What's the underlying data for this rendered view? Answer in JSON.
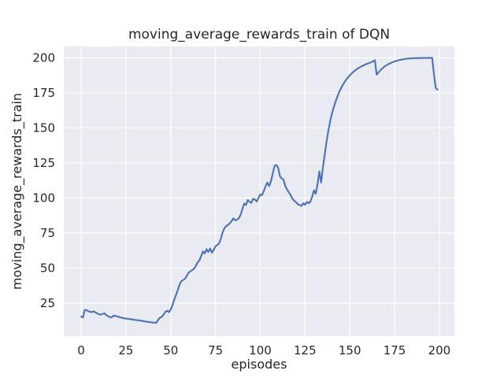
{
  "figure": {
    "background_color": "#ffffff"
  },
  "chart_data": {
    "type": "line",
    "title": "moving_average_rewards_train of DQN",
    "xlabel": "episodes",
    "ylabel": "moving_average_rewards_train",
    "legend": null,
    "grid": true,
    "x_ticks": [
      0,
      25,
      50,
      75,
      100,
      125,
      150,
      175,
      200
    ],
    "y_ticks": [
      25,
      50,
      75,
      100,
      125,
      150,
      175,
      200
    ],
    "xlim": [
      -9.7,
      208.4
    ],
    "ylim": [
      1.4,
      208.1
    ],
    "style": {
      "line_color": "#4C72B0",
      "plot_background": "#EAEAF2",
      "grid_color": "#FFFFFF",
      "text_color": "#262626"
    },
    "series": [
      {
        "name": "moving_average_rewards_train",
        "x_start": 0,
        "x_step": 1,
        "y": [
          15.5,
          14.8,
          20.2,
          20.0,
          19.3,
          18.9,
          18.6,
          19.2,
          18.4,
          17.7,
          17.1,
          16.8,
          17.3,
          17.8,
          16.5,
          15.8,
          15.1,
          14.8,
          16.1,
          15.9,
          15.6,
          15.2,
          14.8,
          14.5,
          14.2,
          14.0,
          13.9,
          13.7,
          13.5,
          13.3,
          13.1,
          12.9,
          12.8,
          12.6,
          12.4,
          12.1,
          11.9,
          11.7,
          11.5,
          11.4,
          11.2,
          11.1,
          11.0,
          13.2,
          14.6,
          15.2,
          16.8,
          18.8,
          19.6,
          18.6,
          20.5,
          23.5,
          27.5,
          31.0,
          34.5,
          38.5,
          40.8,
          41.5,
          42.5,
          44.5,
          46.8,
          47.8,
          48.6,
          49.5,
          51.5,
          54.0,
          55.5,
          58.5,
          62.0,
          60.5,
          63.5,
          61.5,
          64.0,
          61.0,
          63.0,
          65.5,
          66.5,
          67.5,
          71.0,
          75.5,
          78.5,
          80.0,
          80.8,
          82.0,
          83.5,
          85.5,
          84.0,
          84.5,
          85.5,
          88.0,
          92.0,
          96.0,
          95.0,
          98.5,
          97.5,
          96.5,
          99.5,
          99.0,
          97.5,
          100.0,
          102.5,
          102.0,
          105.0,
          108.5,
          111.0,
          108.5,
          112.0,
          117.5,
          123.0,
          123.5,
          121.5,
          115.5,
          114.0,
          113.0,
          108.5,
          106.0,
          104.0,
          102.0,
          99.5,
          98.0,
          97.0,
          95.5,
          95.0,
          94.3,
          96.2,
          95.2,
          97.2,
          96.2,
          97.5,
          101.0,
          105.5,
          103.0,
          110.0,
          119.0,
          111.0,
          122.0,
          131.0,
          140.0,
          148.0,
          154.5,
          160.0,
          164.5,
          168.5,
          172.0,
          175.5,
          178.0,
          180.5,
          182.5,
          184.5,
          186.0,
          187.5,
          188.8,
          190.0,
          191.0,
          192.0,
          192.8,
          193.5,
          194.2,
          194.8,
          195.4,
          195.9,
          196.4,
          196.9,
          197.5,
          198.3,
          188.0,
          189.5,
          191.0,
          192.3,
          193.4,
          194.3,
          195.1,
          195.8,
          196.4,
          196.9,
          197.4,
          197.8,
          198.2,
          198.5,
          198.8,
          199.0,
          199.2,
          199.4,
          199.5,
          199.6,
          199.7,
          199.75,
          199.8,
          199.82,
          199.85,
          199.87,
          199.88,
          199.89,
          199.9,
          199.9,
          199.9,
          199.9,
          188.0,
          178.5,
          177.3
        ]
      }
    ]
  }
}
